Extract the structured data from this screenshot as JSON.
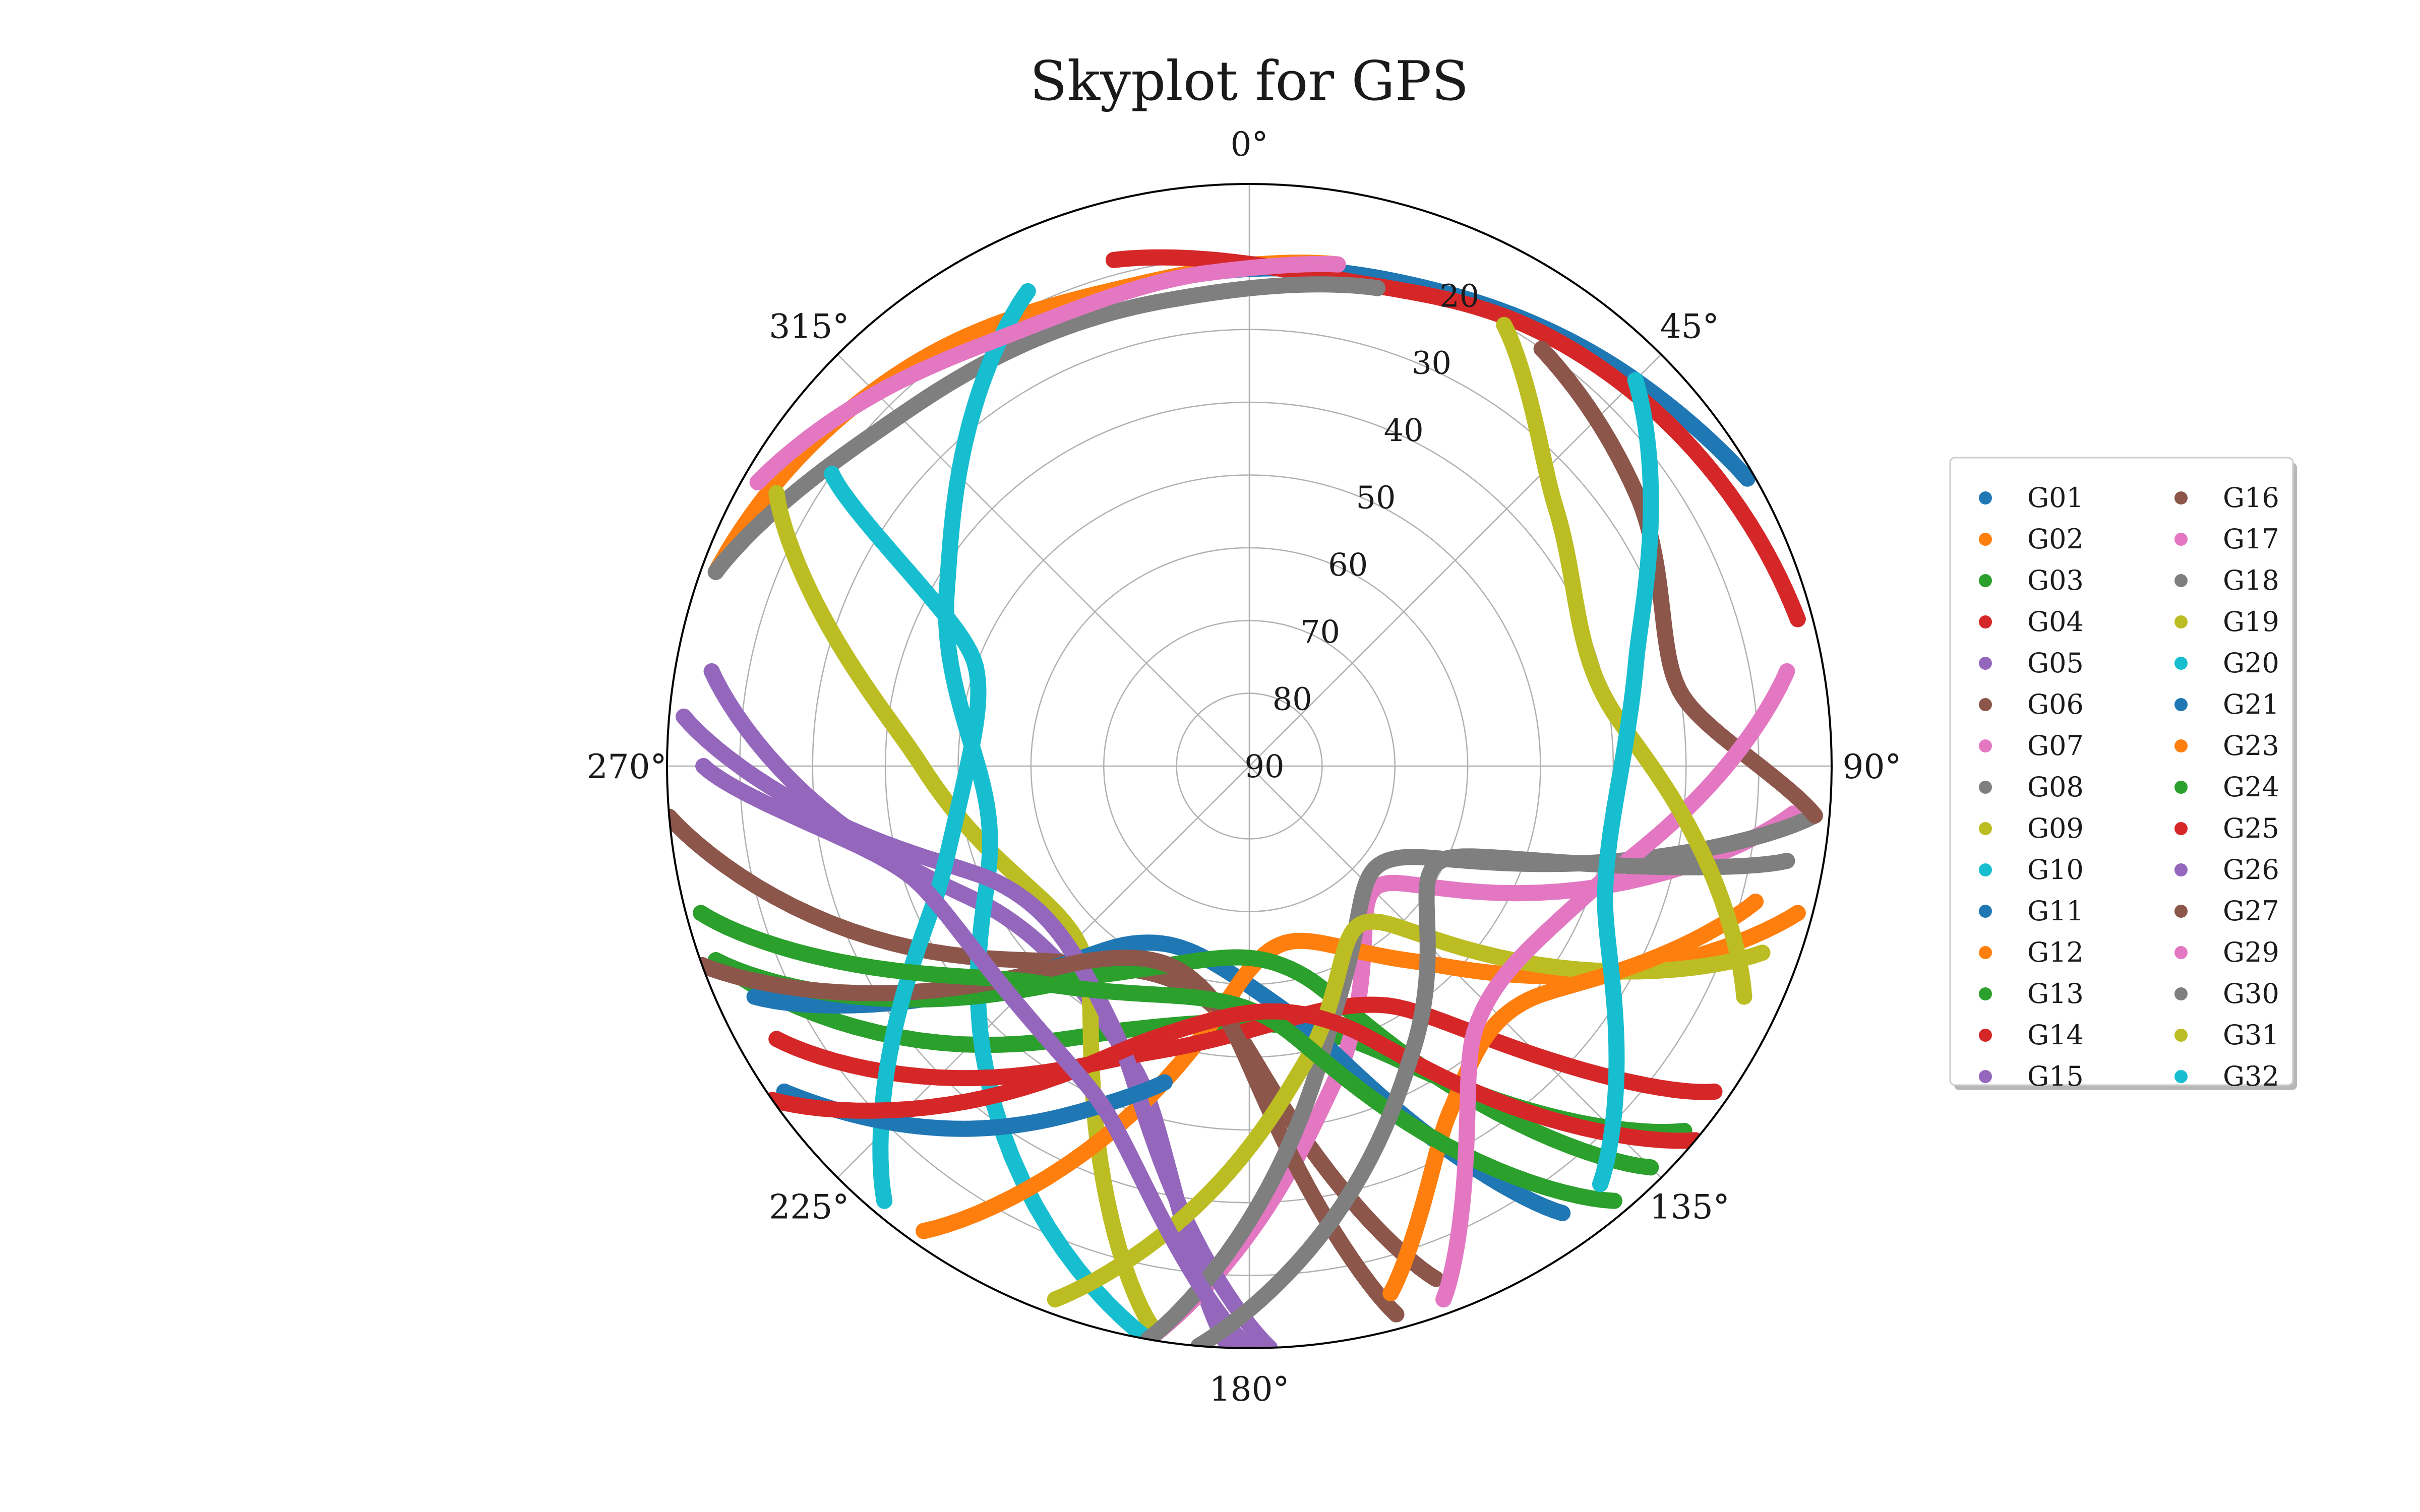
{
  "chart_data": {
    "type": "scatter",
    "subtype": "polar-skyplot",
    "title": "Skyplot for GPS",
    "theta_direction": "clockwise",
    "theta_zero": "top",
    "theta_ticks": [
      0,
      45,
      90,
      135,
      180,
      225,
      270,
      315
    ],
    "theta_tick_labels": [
      "0°",
      "45°",
      "90°",
      "135°",
      "180°",
      "225°",
      "270°",
      "315°"
    ],
    "r_axis": "elevation (deg)",
    "r_ticks": [
      20,
      30,
      40,
      50,
      60,
      70,
      80,
      90
    ],
    "r_tick_labels": [
      "20",
      "30",
      "40",
      "50",
      "60",
      "70",
      "80",
      "90"
    ],
    "elevation_range": [
      10,
      90
    ],
    "grid": true,
    "legend": {
      "placement": "right",
      "columns": 2
    },
    "series": [
      {
        "name": "G01",
        "color": "#1f77b4",
        "x": [
          355,
          20,
          45,
          60
        ],
        "y": [
          22,
          20,
          15,
          11
        ]
      },
      {
        "name": "G02",
        "color": "#ff7f0e",
        "x": [
          290,
          320,
          345,
          10
        ],
        "y": [
          12,
          18,
          22,
          20
        ]
      },
      {
        "name": "G03",
        "color": "#2ca02c",
        "x": [
          250,
          205,
          160,
          130
        ],
        "y": [
          12,
          50,
          50,
          12
        ]
      },
      {
        "name": "G04",
        "color": "#d62728",
        "x": [
          345,
          10,
          35,
          75
        ],
        "y": [
          18,
          22,
          18,
          12
        ]
      },
      {
        "name": "G05",
        "color": "#9467bd",
        "x": [
          280,
          240,
          200,
          182
        ],
        "y": [
          15,
          50,
          45,
          10
        ]
      },
      {
        "name": "G06",
        "color": "#8c564b",
        "x": [
          265,
          225,
          185,
          160
        ],
        "y": [
          10,
          52,
          55,
          15
        ]
      },
      {
        "name": "G07",
        "color": "#e377c2",
        "x": [
          190,
          165,
          130,
          95
        ],
        "y": [
          10,
          45,
          65,
          15
        ]
      },
      {
        "name": "G08",
        "color": "#7f7f7f",
        "x": [
          290,
          315,
          350,
          15
        ],
        "y": [
          12,
          22,
          25,
          22
        ]
      },
      {
        "name": "G09",
        "color": "#bcbd22",
        "x": [
          300,
          270,
          220,
          190
        ],
        "y": [
          15,
          45,
          55,
          12
        ]
      },
      {
        "name": "G10",
        "color": "#17becf",
        "x": [
          335,
          300,
          250,
          190
        ],
        "y": [
          18,
          42,
          52,
          10
        ]
      },
      {
        "name": "G11",
        "color": "#1f77b4",
        "x": [
          245,
          215,
          170,
          145
        ],
        "y": [
          15,
          60,
          55,
          15
        ]
      },
      {
        "name": "G12",
        "color": "#ff7f0e",
        "x": [
          215,
          180,
          140,
          105
        ],
        "y": [
          12,
          62,
          55,
          12
        ]
      },
      {
        "name": "G13",
        "color": "#2ca02c",
        "x": [
          250,
          215,
          165,
          135
        ],
        "y": [
          12,
          55,
          60,
          12
        ]
      },
      {
        "name": "G14",
        "color": "#d62728",
        "x": [
          240,
          200,
          150,
          125
        ],
        "y": [
          15,
          48,
          52,
          12
        ]
      },
      {
        "name": "G15",
        "color": "#9467bd",
        "x": [
          275,
          245,
          205,
          178
        ],
        "y": [
          12,
          52,
          48,
          10
        ]
      },
      {
        "name": "G16",
        "color": "#8c564b",
        "x": [
          250,
          220,
          185,
          165
        ],
        "y": [
          10,
          55,
          55,
          12
        ]
      },
      {
        "name": "G17",
        "color": "#e377c2",
        "x": [
          300,
          330,
          355,
          10
        ],
        "y": [
          12,
          22,
          22,
          20
        ]
      },
      {
        "name": "G18",
        "color": "#7f7f7f",
        "x": [
          190,
          160,
          120,
          95
        ],
        "y": [
          10,
          55,
          65,
          12
        ]
      },
      {
        "name": "G19",
        "color": "#bcbd22",
        "x": [
          200,
          170,
          140,
          110
        ],
        "y": [
          12,
          48,
          62,
          15
        ]
      },
      {
        "name": "G20",
        "color": "#17becf",
        "x": [
          220,
          250,
          290,
          305
        ],
        "y": [
          12,
          45,
          50,
          20
        ]
      },
      {
        "name": "G21",
        "color": "#1f77b4",
        "x": [
          235,
          220,
          205,
          195
        ],
        "y": [
          12,
          25,
          38,
          45
        ]
      },
      {
        "name": "G23",
        "color": "#ff7f0e",
        "x": [
          165,
          150,
          130,
          105
        ],
        "y": [
          15,
          35,
          40,
          18
        ]
      },
      {
        "name": "G24",
        "color": "#2ca02c",
        "x": [
          255,
          225,
          175,
          140
        ],
        "y": [
          12,
          48,
          55,
          12
        ]
      },
      {
        "name": "G25",
        "color": "#d62728",
        "x": [
          235,
          200,
          160,
          130
        ],
        "y": [
          10,
          50,
          52,
          10
        ]
      },
      {
        "name": "G26",
        "color": "#9467bd",
        "x": [
          270,
          250,
          205,
          180
        ],
        "y": [
          15,
          42,
          40,
          10
        ]
      },
      {
        "name": "G27",
        "color": "#8c564b",
        "x": [
          35,
          55,
          80,
          95
        ],
        "y": [
          20,
          25,
          30,
          12
        ]
      },
      {
        "name": "G29",
        "color": "#e377c2",
        "x": [
          80,
          110,
          140,
          160
        ],
        "y": [
          15,
          40,
          42,
          12
        ]
      },
      {
        "name": "G30",
        "color": "#7f7f7f",
        "x": [
          185,
          150,
          115,
          100
        ],
        "y": [
          10,
          45,
          60,
          15
        ]
      },
      {
        "name": "G31",
        "color": "#bcbd22",
        "x": [
          30,
          50,
          80,
          115
        ],
        "y": [
          20,
          35,
          40,
          15
        ]
      },
      {
        "name": "G32",
        "color": "#17becf",
        "x": [
          45,
          75,
          110,
          140
        ],
        "y": [
          15,
          35,
          38,
          15
        ]
      }
    ]
  }
}
